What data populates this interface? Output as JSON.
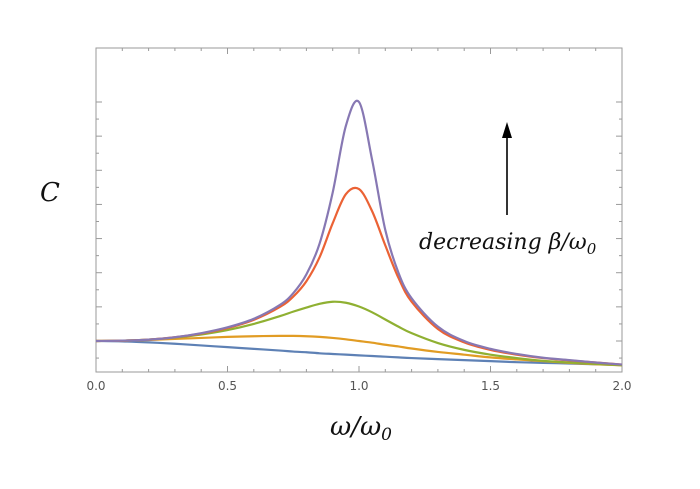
{
  "chart_data": {
    "type": "line",
    "xlabel": {
      "main": "ω/ω",
      "sub": "0"
    },
    "ylabel": "C",
    "xlim": [
      0,
      2
    ],
    "ylim": [
      0,
      8
    ],
    "x_ticks": [
      "0.0",
      "0.5",
      "1.0",
      "1.5",
      "2.0"
    ],
    "annotation": {
      "text_main": "decreasing β/ω",
      "text_sub": "0",
      "arrow": "up"
    },
    "x": [
      0,
      0.1,
      0.2,
      0.3,
      0.4,
      0.5,
      0.6,
      0.7,
      0.75,
      0.8,
      0.85,
      0.9,
      0.95,
      1.0,
      1.05,
      1.1,
      1.15,
      1.2,
      1.3,
      1.4,
      1.5,
      1.6,
      1.7,
      1.8,
      1.9,
      2.0
    ],
    "series": [
      {
        "color": "#5E81B5",
        "values": [
          1.0,
          0.99,
          0.96,
          0.92,
          0.87,
          0.82,
          0.77,
          0.72,
          0.69,
          0.67,
          0.64,
          0.62,
          0.6,
          0.58,
          0.56,
          0.54,
          0.52,
          0.5,
          0.47,
          0.44,
          0.41,
          0.38,
          0.36,
          0.34,
          0.32,
          0.3
        ]
      },
      {
        "color": "#E19C24",
        "values": [
          1.0,
          1.01,
          1.03,
          1.06,
          1.09,
          1.12,
          1.14,
          1.15,
          1.15,
          1.14,
          1.12,
          1.09,
          1.05,
          1.0,
          0.95,
          0.89,
          0.84,
          0.78,
          0.68,
          0.6,
          0.52,
          0.46,
          0.41,
          0.36,
          0.32,
          0.29
        ]
      },
      {
        "color": "#8FB032",
        "values": [
          1.0,
          1.01,
          1.04,
          1.1,
          1.19,
          1.32,
          1.5,
          1.73,
          1.86,
          1.98,
          2.09,
          2.15,
          2.12,
          2.01,
          1.84,
          1.63,
          1.42,
          1.23,
          0.94,
          0.74,
          0.6,
          0.5,
          0.42,
          0.37,
          0.33,
          0.29
        ]
      },
      {
        "color": "#EB6235",
        "values": [
          1.0,
          1.01,
          1.04,
          1.11,
          1.22,
          1.38,
          1.62,
          2.0,
          2.3,
          2.75,
          3.45,
          4.45,
          5.3,
          5.45,
          4.8,
          3.8,
          2.85,
          2.15,
          1.35,
          0.96,
          0.74,
          0.6,
          0.5,
          0.43,
          0.37,
          0.31
        ]
      },
      {
        "color": "#8778B3",
        "values": [
          1.0,
          1.01,
          1.04,
          1.11,
          1.23,
          1.4,
          1.65,
          2.06,
          2.4,
          2.95,
          3.85,
          5.35,
          7.3,
          8.0,
          6.3,
          4.25,
          3.0,
          2.25,
          1.42,
          1.0,
          0.77,
          0.62,
          0.51,
          0.44,
          0.37,
          0.31
        ]
      }
    ]
  }
}
